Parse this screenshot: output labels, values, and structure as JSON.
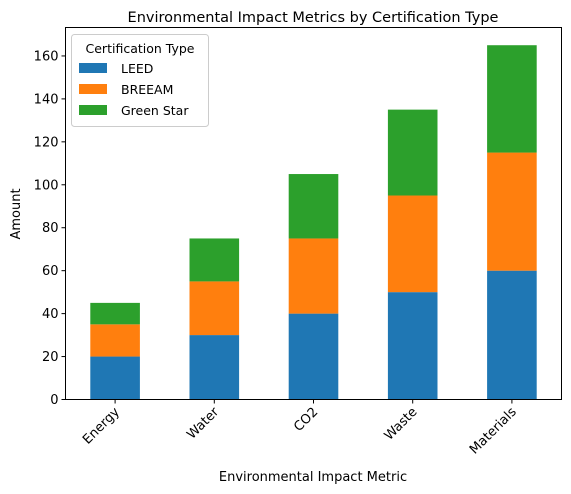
{
  "chart_data": {
    "type": "bar",
    "stacked": true,
    "title": "Environmental Impact Metrics by Certification Type",
    "xlabel": "Environmental Impact Metric",
    "ylabel": "Amount",
    "categories": [
      "Energy",
      "Water",
      "CO2",
      "Waste",
      "Materials"
    ],
    "series": [
      {
        "name": "LEED",
        "values": [
          20,
          30,
          40,
          50,
          60
        ],
        "color": "#1f77b4"
      },
      {
        "name": "BREEAM",
        "values": [
          15,
          25,
          35,
          45,
          55
        ],
        "color": "#ff7f0e"
      },
      {
        "name": "Green Star",
        "values": [
          10,
          20,
          30,
          40,
          50
        ],
        "color": "#2ca02c"
      }
    ],
    "ylim": [
      0,
      173.25
    ],
    "yticks": [
      0,
      20,
      40,
      60,
      80,
      100,
      120,
      140,
      160
    ],
    "legend": {
      "title": "Certification Type",
      "placement": "top-left"
    },
    "grid": false
  }
}
